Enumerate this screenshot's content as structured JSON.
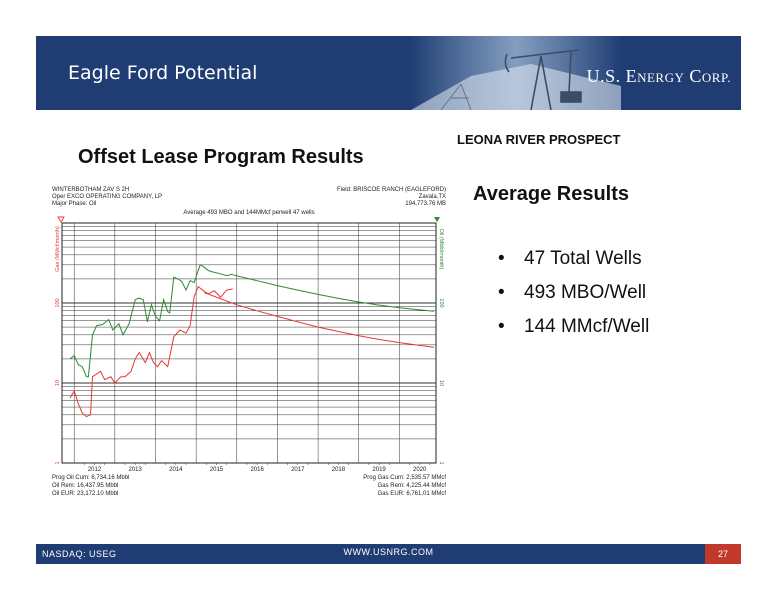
{
  "header": {
    "title": "Eagle Ford Potential",
    "logo_us": "U.S. E",
    "logo_nergy": "NERGY",
    "logo_corp": " C",
    "logo_orp": "ORP."
  },
  "slide": {
    "prospect": "LEONA RIVER PROSPECT",
    "offset_title": "Offset Lease Program Results",
    "avg_title": "Average Results",
    "bullets": [
      "47 Total Wells",
      "493 MBO/Well",
      "144 MMcf/Well"
    ],
    "bullet_glyph": "•"
  },
  "footer": {
    "nasdaq": "NASDAQ: USEG",
    "url": "WWW.USNRG.COM",
    "page": "27"
  },
  "chart_header": {
    "left1": "WINTERBOTHAM ZAV S 2H",
    "left2": "Oper EXCO OPERATING COMPANY, LP",
    "left3": "Major Phase: Oil",
    "right1": "Field: BRISCOE RANCH (EAGLEFORD)",
    "right2": "Zavala,TX",
    "right3": "194,773.76 MB",
    "footer_left1": "Prog Oil Cum: 6,734.16 Mbbl",
    "footer_left2": "Oil Rem: 16,437.95 Mbbl",
    "footer_left3": "Oil EUR: 23,172.10 Mbbl",
    "footer_right1": "Prog Gas Cum: 2,535.57 MMcf",
    "footer_right2": "Gas Rem: 4,225.44 MMcf",
    "footer_right3": "Gas EUR: 6,761.01 MMcf"
  },
  "chart_data": {
    "type": "line",
    "title": "Average 493 MBO and 144MMcf perwell 47 wells",
    "ylabel_left": "Gas (MMcf/month)",
    "ylabel_right": "Oil (Mbbl/month)",
    "y_scale": "log",
    "ylim": [
      1,
      1000
    ],
    "xlim": [
      2011.7,
      2020.9
    ],
    "xticks": [
      "2012",
      "2013",
      "2014",
      "2015",
      "2016",
      "2017",
      "2018",
      "2019",
      "2020"
    ],
    "yticks_left": [
      "1",
      "10",
      "100"
    ],
    "yticks_right": [
      "1",
      "10",
      "100"
    ],
    "grid": true,
    "colors": {
      "oil": "#2e8b2e",
      "gas": "#e53935",
      "marker_left": "#e53935",
      "marker_right": "#2e8b2e"
    },
    "series": [
      {
        "kind": "oil",
        "historical": [
          [
            2011.9,
            20
          ],
          [
            2012.0,
            22
          ],
          [
            2012.1,
            17
          ],
          [
            2012.2,
            16
          ],
          [
            2012.3,
            12
          ],
          [
            2012.35,
            12
          ],
          [
            2012.45,
            40
          ],
          [
            2012.55,
            52
          ],
          [
            2012.7,
            54
          ],
          [
            2012.85,
            62
          ],
          [
            2012.95,
            46
          ],
          [
            2013.1,
            55
          ],
          [
            2013.2,
            40
          ],
          [
            2013.35,
            55
          ],
          [
            2013.5,
            110
          ],
          [
            2013.6,
            115
          ],
          [
            2013.7,
            110
          ],
          [
            2013.8,
            58
          ],
          [
            2013.9,
            95
          ],
          [
            2014.0,
            68
          ],
          [
            2014.1,
            60
          ],
          [
            2014.2,
            110
          ],
          [
            2014.3,
            78
          ],
          [
            2014.35,
            75
          ],
          [
            2014.45,
            210
          ],
          [
            2014.55,
            200
          ],
          [
            2014.65,
            185
          ],
          [
            2014.75,
            145
          ],
          [
            2014.85,
            190
          ],
          [
            2014.95,
            180
          ],
          [
            2015.1,
            300
          ],
          [
            2015.2,
            280
          ],
          [
            2015.3,
            255
          ],
          [
            2015.4,
            245
          ],
          [
            2015.55,
            235
          ],
          [
            2015.75,
            220
          ],
          [
            2015.9,
            230
          ]
        ],
        "forecast": [
          [
            2015.9,
            225
          ],
          [
            2016.5,
            190
          ],
          [
            2017.0,
            165
          ],
          [
            2017.5,
            145
          ],
          [
            2018.0,
            128
          ],
          [
            2018.5,
            114
          ],
          [
            2019.0,
            103
          ],
          [
            2019.5,
            94
          ],
          [
            2020.0,
            87
          ],
          [
            2020.5,
            82
          ],
          [
            2020.85,
            79
          ]
        ]
      },
      {
        "kind": "gas",
        "historical": [
          [
            2011.9,
            6.5
          ],
          [
            2012.0,
            8
          ],
          [
            2012.1,
            5.5
          ],
          [
            2012.2,
            4.2
          ],
          [
            2012.3,
            3.8
          ],
          [
            2012.4,
            4.0
          ],
          [
            2012.45,
            12
          ],
          [
            2012.55,
            13
          ],
          [
            2012.65,
            14
          ],
          [
            2012.75,
            11
          ],
          [
            2012.9,
            12
          ],
          [
            2013.0,
            10
          ],
          [
            2013.15,
            12
          ],
          [
            2013.25,
            12
          ],
          [
            2013.4,
            14
          ],
          [
            2013.5,
            20
          ],
          [
            2013.6,
            24
          ],
          [
            2013.75,
            18
          ],
          [
            2013.85,
            24
          ],
          [
            2013.95,
            18
          ],
          [
            2014.05,
            16
          ],
          [
            2014.15,
            19
          ],
          [
            2014.25,
            17
          ],
          [
            2014.3,
            16
          ],
          [
            2014.45,
            38
          ],
          [
            2014.6,
            46
          ],
          [
            2014.75,
            42
          ],
          [
            2014.85,
            52
          ],
          [
            2014.95,
            120
          ],
          [
            2015.05,
            160
          ],
          [
            2015.2,
            140
          ],
          [
            2015.3,
            130
          ],
          [
            2015.45,
            142
          ],
          [
            2015.6,
            118
          ],
          [
            2015.75,
            145
          ],
          [
            2015.9,
            150
          ]
        ],
        "forecast": [
          [
            2015.2,
            135
          ],
          [
            2016.0,
            95
          ],
          [
            2016.5,
            80
          ],
          [
            2017.0,
            68
          ],
          [
            2017.5,
            58
          ],
          [
            2018.0,
            50
          ],
          [
            2018.5,
            44
          ],
          [
            2019.0,
            39
          ],
          [
            2019.5,
            35
          ],
          [
            2020.0,
            32
          ],
          [
            2020.5,
            29.5
          ],
          [
            2020.85,
            28
          ]
        ]
      }
    ]
  }
}
